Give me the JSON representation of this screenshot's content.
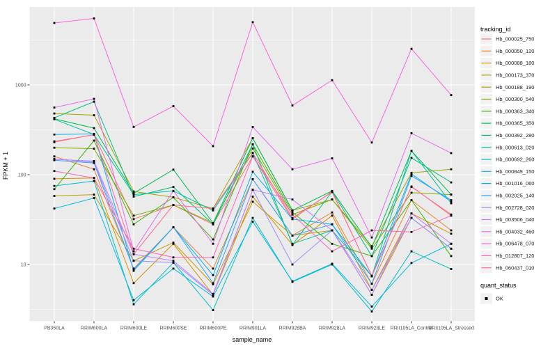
{
  "figure": {
    "background": "#FFFFFF",
    "panel_background": "#EBEBEB",
    "grid_color": "#FFFFFF",
    "tick_label_color": "#4D4D4D",
    "point_color": "#000000"
  },
  "legend": {
    "tracking_title": "tracking_id",
    "quant_title": "quant_status",
    "quant_items": [
      {
        "label": "OK",
        "marker": "black-square"
      }
    ]
  },
  "chart_data": {
    "type": "line",
    "title": "",
    "xlabel": "sample_name",
    "ylabel": "FPKM + 1",
    "yscale": "log10",
    "yticks": [
      10,
      100,
      1000
    ],
    "ytick_labels": [
      "10",
      "100",
      "1000"
    ],
    "yminor": [
      3.162,
      31.62,
      316.2,
      3162
    ],
    "ylim": [
      2.3,
      7400
    ],
    "grid": true,
    "legend_position": "right",
    "marker": "black-point",
    "x_categories": [
      "PB350LA",
      "RRIM600LA",
      "RRIM600LE",
      "RRIM600SE",
      "RRIM600PE",
      "RRIM901LA",
      "RRIM928BA",
      "RRIM928LA",
      "RRIM928LE",
      "RRII105LA_Control",
      "RRII105LA_Stressed"
    ],
    "series": [
      {
        "name": "Hb_000025_750",
        "color": "#F8766D",
        "values": [
          230,
          280,
          32,
          46,
          28,
          160,
          32,
          65,
          7.4,
          74,
          35
        ]
      },
      {
        "name": "Hb_000050_120",
        "color": "#EA8331",
        "values": [
          160,
          115,
          9,
          26,
          9,
          89,
          21,
          38,
          6.1,
          52,
          24
        ]
      },
      {
        "name": "Hb_000088_180",
        "color": "#D89000",
        "values": [
          90,
          92,
          6.2,
          17,
          4.6,
          57,
          16.5,
          35,
          5.2,
          37,
          22
        ]
      },
      {
        "name": "Hb_000173_370",
        "color": "#C09B00",
        "values": [
          58,
          60,
          11,
          17.5,
          6,
          50,
          21,
          24,
          4.6,
          33,
          15
        ]
      },
      {
        "name": "Hb_000188_190",
        "color": "#A3A500",
        "values": [
          480,
          460,
          65,
          56,
          42,
          255,
          40,
          53,
          16,
          105,
          115
        ]
      },
      {
        "name": "Hb_000300_540",
        "color": "#7CAE00",
        "values": [
          200,
          195,
          35,
          46,
          29,
          196,
          36,
          53,
          15,
          63,
          60
        ]
      },
      {
        "name": "Hb_000363_340",
        "color": "#39B600",
        "values": [
          69,
          240,
          28,
          56,
          19,
          218,
          38,
          17,
          12.4,
          52,
          12.4
        ]
      },
      {
        "name": "Hb_000365_350",
        "color": "#00BB4E",
        "values": [
          420,
          330,
          62,
          114,
          29,
          255,
          40,
          66,
          15.5,
          184,
          60
        ]
      },
      {
        "name": "Hb_000392_280",
        "color": "#00BF7D",
        "values": [
          430,
          650,
          57,
          73,
          28,
          218,
          16.5,
          65,
          12.4,
          154,
          82
        ]
      },
      {
        "name": "Hb_000613_020",
        "color": "#00C1A3",
        "values": [
          415,
          280,
          60,
          66,
          40,
          174,
          17,
          24,
          7.4,
          184,
          48
        ]
      },
      {
        "name": "Hb_000692_260",
        "color": "#00BFC4",
        "values": [
          75,
          85,
          3.6,
          10.5,
          3.1,
          33,
          6.4,
          10,
          3.0,
          14,
          8.9
        ]
      },
      {
        "name": "Hb_000849_150",
        "color": "#00BAE0",
        "values": [
          42,
          55,
          4.0,
          9,
          4.4,
          30,
          6.5,
          10.2,
          3.4,
          10.4,
          17
        ]
      },
      {
        "name": "Hb_001016_060",
        "color": "#00B0F6",
        "values": [
          280,
          285,
          8.5,
          26,
          7.6,
          108,
          32,
          28,
          7.4,
          102,
          50
        ]
      },
      {
        "name": "Hb_002025_140",
        "color": "#35A2FF",
        "values": [
          145,
          135,
          8.8,
          26,
          6.2,
          89,
          21,
          28,
          6.1,
          97,
          52
        ]
      },
      {
        "name": "Hb_002728_020",
        "color": "#9590FF",
        "values": [
          150,
          138,
          11,
          10.5,
          4.6,
          68,
          10,
          24,
          5.2,
          33,
          15
        ]
      },
      {
        "name": "Hb_003506_040",
        "color": "#C77CFF",
        "values": [
          148,
          142,
          13,
          11,
          4.7,
          68,
          53,
          24,
          4.6,
          37,
          17
        ]
      },
      {
        "name": "Hb_004032_460",
        "color": "#E76BF3",
        "values": [
          560,
          700,
          14,
          66,
          17,
          340,
          115,
          152,
          20,
          290,
          174
        ]
      },
      {
        "name": "Hb_006478_070",
        "color": "#FA62DB",
        "values": [
          4900,
          5500,
          340,
          580,
          208,
          5000,
          590,
          1130,
          228,
          2520,
          770
        ]
      },
      {
        "name": "Hb_012807_120",
        "color": "#FF62BC",
        "values": [
          110,
          92,
          15,
          12,
          12,
          160,
          36,
          14,
          24,
          23,
          35
        ]
      },
      {
        "name": "Hb_060437_010",
        "color": "#FF6A98",
        "values": [
          235,
          278,
          13,
          46,
          42,
          175,
          33,
          64,
          7.5,
          73,
          36
        ]
      }
    ]
  }
}
